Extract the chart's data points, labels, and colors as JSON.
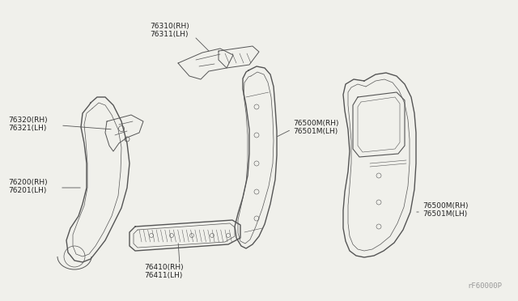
{
  "bg_color": "#f0f0eb",
  "line_color": "#555555",
  "label_color": "#222222",
  "watermark": "rF60000P",
  "parts": [
    {
      "id": "76310(RH)",
      "id2": "76311(LH)"
    },
    {
      "id": "76320(RH)",
      "id2": "76321(LH)"
    },
    {
      "id": "76200(RH)",
      "id2": "76201(LH)"
    },
    {
      "id": "76410(RH)",
      "id2": "76411(LH)"
    },
    {
      "id": "76500M(RH)",
      "id2": "76501M(LH)"
    },
    {
      "id": "76500M(RH)",
      "id2": "76501M(LH)"
    }
  ]
}
